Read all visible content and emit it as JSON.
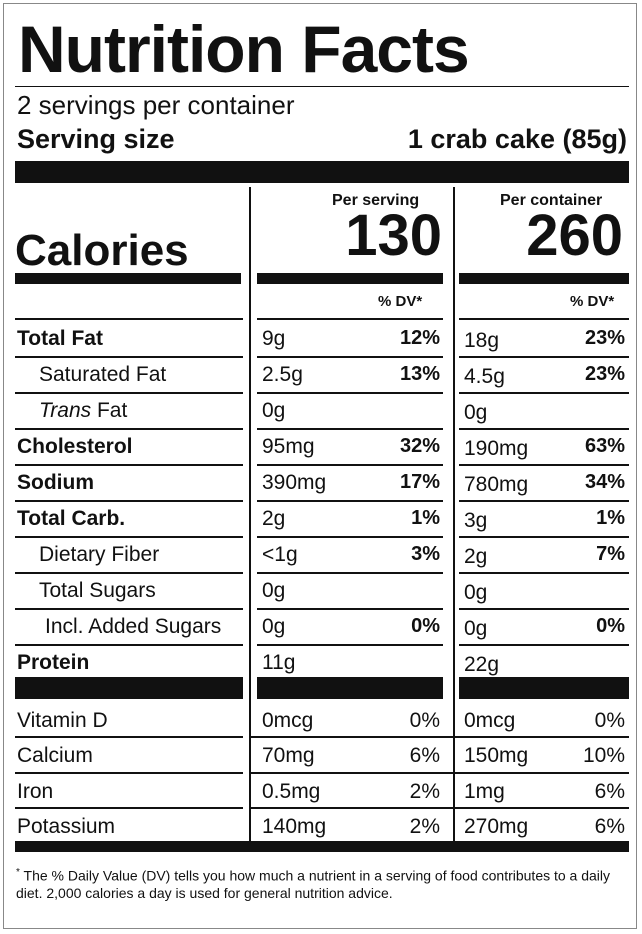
{
  "title": "Nutrition Facts",
  "servings_per_container": "2 servings per container",
  "serving_size_label": "Serving size",
  "serving_size_value": "1 crab cake (85g)",
  "calories_label": "Calories",
  "per_serving_label": "Per serving",
  "per_container_label": "Per container",
  "calories_per_serving": "130",
  "calories_per_container": "260",
  "dv_header": "% DV*",
  "nutrients": [
    {
      "name": "Total Fat",
      "serving_amount": "9g",
      "serving_dv": "12%",
      "container_amount": "18g",
      "container_dv": "23%"
    },
    {
      "name": "Saturated Fat",
      "serving_amount": "2.5g",
      "serving_dv": "13%",
      "container_amount": "4.5g",
      "container_dv": "23%"
    },
    {
      "name_italic": "Trans",
      "name_rest": " Fat",
      "serving_amount": "0g",
      "serving_dv": "",
      "container_amount": "0g",
      "container_dv": ""
    },
    {
      "name": "Cholesterol",
      "serving_amount": "95mg",
      "serving_dv": "32%",
      "container_amount": "190mg",
      "container_dv": "63%"
    },
    {
      "name": "Sodium",
      "serving_amount": "390mg",
      "serving_dv": "17%",
      "container_amount": "780mg",
      "container_dv": "34%"
    },
    {
      "name": "Total Carb.",
      "serving_amount": "2g",
      "serving_dv": "1%",
      "container_amount": "3g",
      "container_dv": "1%"
    },
    {
      "name": "Dietary Fiber",
      "serving_amount": "<1g",
      "serving_dv": "3%",
      "container_amount": "2g",
      "container_dv": "7%"
    },
    {
      "name": "Total Sugars",
      "serving_amount": "0g",
      "serving_dv": "",
      "container_amount": "0g",
      "container_dv": ""
    },
    {
      "name": "Incl. Added Sugars",
      "serving_amount": "0g",
      "serving_dv": "0%",
      "container_amount": "0g",
      "container_dv": "0%"
    },
    {
      "name": "Protein",
      "serving_amount": "11g",
      "serving_dv": "",
      "container_amount": "22g",
      "container_dv": ""
    }
  ],
  "micros": [
    {
      "name": "Vitamin D",
      "serving_amount": "0mcg",
      "serving_dv": "0%",
      "container_amount": "0mcg",
      "container_dv": "0%"
    },
    {
      "name": "Calcium",
      "serving_amount": "70mg",
      "serving_dv": "6%",
      "container_amount": "150mg",
      "container_dv": "10%"
    },
    {
      "name": "Iron",
      "serving_amount": "0.5mg",
      "serving_dv": "2%",
      "container_amount": "1mg",
      "container_dv": "6%"
    },
    {
      "name": "Potassium",
      "serving_amount": "140mg",
      "serving_dv": "2%",
      "container_amount": "270mg",
      "container_dv": "6%"
    }
  ],
  "footnote_mark": "*",
  "footnote": "The % Daily Value (DV) tells you how much a nutrient in a serving of food contributes to a daily diet. 2,000 calories a day is used for general nutrition advice."
}
